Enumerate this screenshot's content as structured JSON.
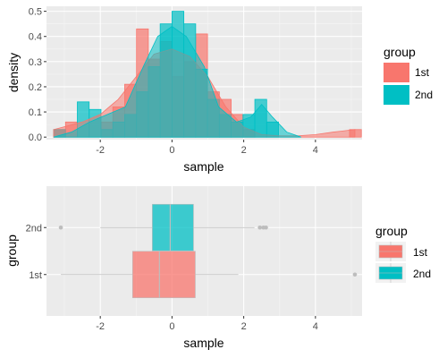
{
  "chart_data": [
    {
      "type": "histogram",
      "xlabel": "sample",
      "ylabel": "density",
      "xlim": [
        -3.5,
        5.3
      ],
      "ylim": [
        -0.01,
        0.52
      ],
      "x_ticks": [
        -2,
        0,
        2,
        4
      ],
      "x_tick_labels": [
        "-2",
        "0",
        "2",
        "4"
      ],
      "y_ticks": [
        0.0,
        0.1,
        0.2,
        0.3,
        0.4,
        0.5
      ],
      "y_tick_labels": [
        "0.0",
        "0.1",
        "0.2",
        "0.3",
        "0.4",
        "0.5"
      ],
      "grid": true,
      "legend": {
        "title": "group",
        "position": "right",
        "labels": [
          "1st",
          "2nd"
        ]
      },
      "colors": {
        "1st": "#F8766D",
        "2nd": "#00BFC4"
      },
      "bin_width": 0.33,
      "series": [
        {
          "name": "1st",
          "bin_starts": [
            -3.3,
            -2.97,
            -2.64,
            -2.31,
            -1.98,
            -1.65,
            -1.32,
            -0.99,
            -0.66,
            -0.33,
            0.0,
            0.33,
            0.66,
            0.99,
            1.32,
            1.65,
            1.98,
            2.31,
            2.64,
            2.97,
            3.3,
            3.63,
            3.96,
            4.29,
            4.62,
            4.95
          ],
          "heights": [
            0.03,
            0.06,
            0.0,
            0.0,
            0.06,
            0.12,
            0.21,
            0.43,
            0.31,
            0.38,
            0.24,
            0.3,
            0.41,
            0.18,
            0.15,
            0.09,
            0.03,
            0.0,
            0.0,
            0.0,
            0.0,
            0.0,
            0.0,
            0.0,
            0.0,
            0.03
          ],
          "density": [
            [
              -3.3,
              0.03
            ],
            [
              -2.5,
              0.06
            ],
            [
              -2.0,
              0.09
            ],
            [
              -1.5,
              0.15
            ],
            [
              -1.0,
              0.24
            ],
            [
              -0.5,
              0.33
            ],
            [
              0.0,
              0.35
            ],
            [
              0.5,
              0.32
            ],
            [
              1.0,
              0.24
            ],
            [
              1.5,
              0.12
            ],
            [
              2.0,
              0.04
            ],
            [
              2.5,
              0.01
            ],
            [
              3.0,
              0.005
            ],
            [
              3.5,
              0.005
            ],
            [
              4.0,
              0.01
            ],
            [
              4.5,
              0.02
            ],
            [
              5.1,
              0.03
            ]
          ]
        },
        {
          "name": "2nd",
          "bin_starts": [
            -3.3,
            -2.97,
            -2.64,
            -2.31,
            -1.98,
            -1.65,
            -1.32,
            -0.99,
            -0.66,
            -0.33,
            0.0,
            0.33,
            0.66,
            0.99,
            1.32,
            1.65,
            1.98,
            2.31,
            2.64
          ],
          "heights": [
            0.03,
            0.0,
            0.14,
            0.11,
            0.03,
            0.06,
            0.09,
            0.18,
            0.28,
            0.45,
            0.5,
            0.45,
            0.27,
            0.15,
            0.09,
            0.06,
            0.09,
            0.15,
            0.06
          ],
          "density": [
            [
              -3.3,
              0.0
            ],
            [
              -2.8,
              0.02
            ],
            [
              -2.3,
              0.06
            ],
            [
              -1.8,
              0.09
            ],
            [
              -1.3,
              0.12
            ],
            [
              -0.8,
              0.28
            ],
            [
              -0.4,
              0.4
            ],
            [
              0.0,
              0.44
            ],
            [
              0.4,
              0.4
            ],
            [
              0.9,
              0.28
            ],
            [
              1.3,
              0.12
            ],
            [
              1.8,
              0.06
            ],
            [
              2.2,
              0.08
            ],
            [
              2.5,
              0.13
            ],
            [
              2.8,
              0.08
            ],
            [
              3.2,
              0.02
            ],
            [
              3.6,
              0.0
            ]
          ]
        }
      ]
    },
    {
      "type": "boxplot",
      "orientation": "horizontal",
      "xlabel": "sample",
      "ylabel": "group",
      "xlim": [
        -3.5,
        5.3
      ],
      "x_ticks": [
        -2,
        0,
        2,
        4
      ],
      "x_tick_labels": [
        "-2",
        "0",
        "2",
        "4"
      ],
      "categories": [
        "1st",
        "2nd"
      ],
      "grid": true,
      "legend": {
        "title": "group",
        "position": "right",
        "labels": [
          "1st",
          "2nd"
        ]
      },
      "colors": {
        "1st": "#F8766D",
        "2nd": "#00BFC4"
      },
      "boxes": [
        {
          "name": "1st",
          "whisker_low": -3.1,
          "q1": -1.1,
          "median": -0.35,
          "q3": 0.65,
          "whisker_high": 1.85,
          "outliers": [
            5.1
          ]
        },
        {
          "name": "2nd",
          "whisker_low": -2.0,
          "q1": -0.55,
          "median": -0.05,
          "q3": 0.6,
          "whisker_high": 2.3,
          "outliers": [
            -3.1,
            2.45,
            2.55,
            2.62
          ]
        }
      ]
    }
  ]
}
